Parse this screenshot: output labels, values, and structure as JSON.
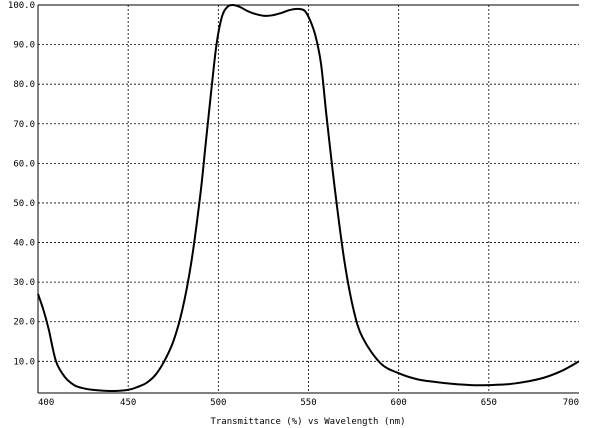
{
  "chart_data": {
    "type": "line",
    "title": "",
    "xlabel": "Transmittance (%)  vs  Wavelength (nm)",
    "ylabel": "",
    "xlim": [
      400,
      700
    ],
    "ylim": [
      2,
      100
    ],
    "grid": true,
    "x_ticks": [
      "400",
      "450",
      "500",
      "550",
      "600",
      "650",
      "700"
    ],
    "y_ticks": [
      "100.0",
      "90.0",
      "80.0",
      "70.0",
      "60.0",
      "50.0",
      "40.0",
      "30.0",
      "20.0",
      "10.0"
    ],
    "series": [
      {
        "x": [
          400,
          403,
          406,
          410,
          415,
          420,
          425,
          430,
          440,
          450,
          455,
          460,
          465,
          470,
          475,
          480,
          485,
          490,
          493,
          496,
          499,
          502,
          505,
          508,
          512,
          516,
          520,
          525,
          530,
          535,
          540,
          545,
          548,
          551,
          554,
          557,
          560,
          565,
          570,
          575,
          580,
          590,
          600,
          610,
          620,
          630,
          640,
          650,
          660,
          670,
          680,
          690,
          700
        ],
        "y": [
          27,
          23,
          18,
          10,
          6,
          4,
          3.2,
          2.8,
          2.5,
          2.8,
          3.5,
          4.5,
          6.5,
          10,
          15,
          23,
          35,
          52,
          65,
          78,
          90,
          97,
          99.5,
          100,
          99.5,
          98.5,
          97.8,
          97.3,
          97.4,
          98,
          98.8,
          99,
          98.5,
          96,
          92,
          85,
          72,
          52,
          35,
          23,
          16,
          9.5,
          7,
          5.5,
          4.8,
          4.3,
          4,
          4,
          4.2,
          4.8,
          5.8,
          7.5,
          10
        ]
      }
    ]
  }
}
